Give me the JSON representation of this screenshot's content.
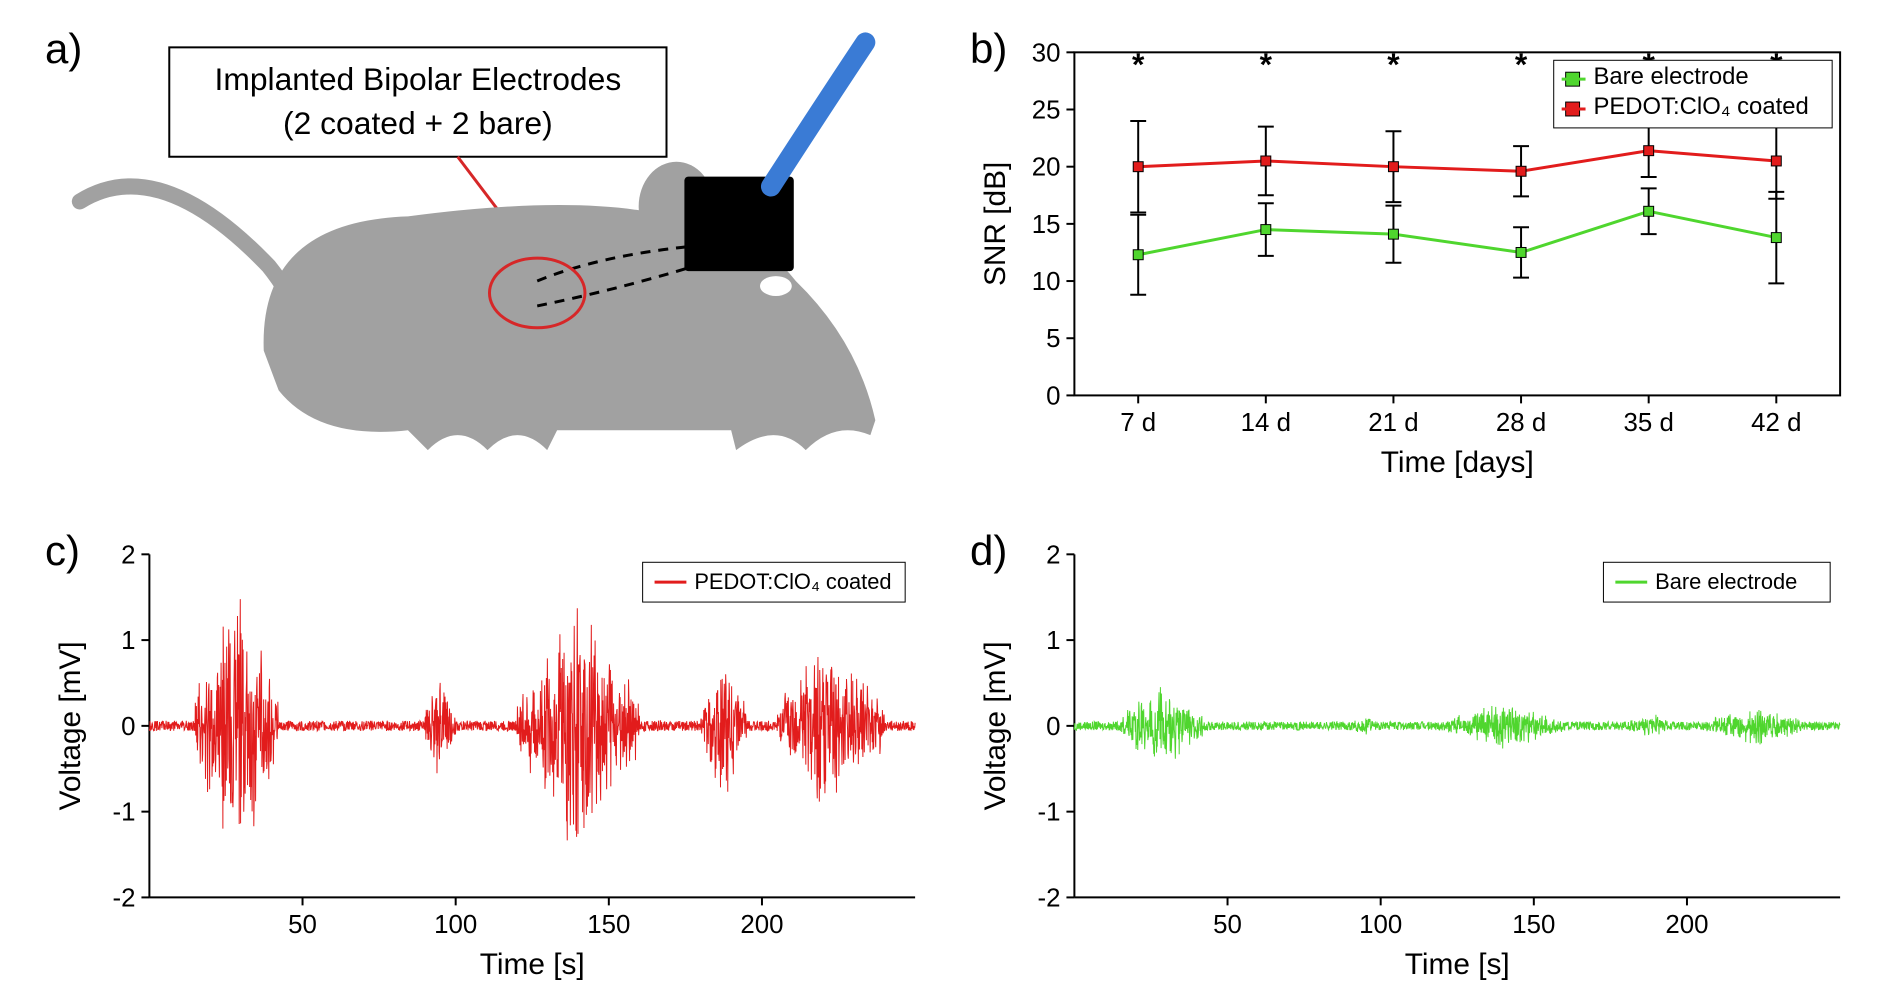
{
  "panelA": {
    "label": "a)",
    "caption_line1": "Implanted Bipolar Electrodes",
    "caption_line2": "(2 coated + 2 bare)",
    "mouse_color": "#a1a1a1",
    "connector_black": "#000000",
    "cable_color": "#3a7bd5",
    "arrow_color": "#d62728",
    "circle_color": "#d62728"
  },
  "panelB": {
    "label": "b)",
    "type": "line-errorbar",
    "xlabel": "Time [days]",
    "ylabel": "SNR [dB]",
    "x_ticklabels": [
      "7 d",
      "14 d",
      "21 d",
      "28 d",
      "35 d",
      "42 d"
    ],
    "x_positions": [
      0,
      1,
      2,
      3,
      4,
      5
    ],
    "ylim": [
      0,
      30
    ],
    "ytick_step": 5,
    "yticks": [
      0,
      5,
      10,
      15,
      20,
      25,
      30
    ],
    "series": [
      {
        "name": "Bare electrode",
        "color": "#4fd62e",
        "marker": "square",
        "y": [
          12.3,
          14.5,
          14.1,
          12.5,
          16.1,
          13.8
        ],
        "err": [
          3.5,
          2.3,
          2.5,
          2.2,
          2.0,
          4.0
        ]
      },
      {
        "name": "PEDOT:ClO₄ coated",
        "color": "#e21c1c",
        "marker": "square",
        "y": [
          20.0,
          20.5,
          20.0,
          19.6,
          21.4,
          20.5
        ],
        "err": [
          4.0,
          3.0,
          3.1,
          2.2,
          2.3,
          3.3
        ]
      }
    ],
    "significance_marker": "*",
    "sig_y": 28,
    "axis_color": "#000000",
    "tick_fontsize": 26,
    "label_fontsize": 30,
    "legend_fontsize": 24,
    "errorbar_color": "#000000",
    "line_width": 3,
    "marker_size": 10,
    "cap_width": 8
  },
  "panelC": {
    "label": "c)",
    "type": "waveform",
    "xlabel": "Time [s]",
    "ylabel": "Voltage [mV]",
    "xlim": [
      0,
      250
    ],
    "xticks": [
      50,
      100,
      150,
      200
    ],
    "ylim": [
      -2,
      2
    ],
    "yticks": [
      -2,
      -1,
      0,
      1,
      2
    ],
    "legend_name": "PEDOT:ClO₄ coated",
    "color": "#e21c1c",
    "axis_color": "#000000",
    "line_width": 1,
    "bursts": [
      {
        "start": 15,
        "end": 42,
        "amp": 1.8
      },
      {
        "start": 90,
        "end": 100,
        "amp": 0.7
      },
      {
        "start": 120,
        "end": 160,
        "amp": 1.6
      },
      {
        "start": 180,
        "end": 195,
        "amp": 1.0
      },
      {
        "start": 205,
        "end": 240,
        "amp": 1.2
      }
    ],
    "baseline_noise": 0.06
  },
  "panelD": {
    "label": "d)",
    "type": "waveform",
    "xlabel": "Time [s]",
    "ylabel": "Voltage [mV]",
    "xlim": [
      0,
      250
    ],
    "xticks": [
      50,
      100,
      150,
      200
    ],
    "ylim": [
      -2,
      2
    ],
    "yticks": [
      -2,
      -1,
      0,
      1,
      2
    ],
    "legend_name": "Bare electrode",
    "color": "#4fd62e",
    "axis_color": "#000000",
    "line_width": 1,
    "bursts": [
      {
        "start": 15,
        "end": 42,
        "amp": 0.55
      },
      {
        "start": 90,
        "end": 100,
        "amp": 0.15
      },
      {
        "start": 120,
        "end": 160,
        "amp": 0.3
      },
      {
        "start": 180,
        "end": 195,
        "amp": 0.18
      },
      {
        "start": 205,
        "end": 240,
        "amp": 0.25
      }
    ],
    "baseline_noise": 0.05
  }
}
